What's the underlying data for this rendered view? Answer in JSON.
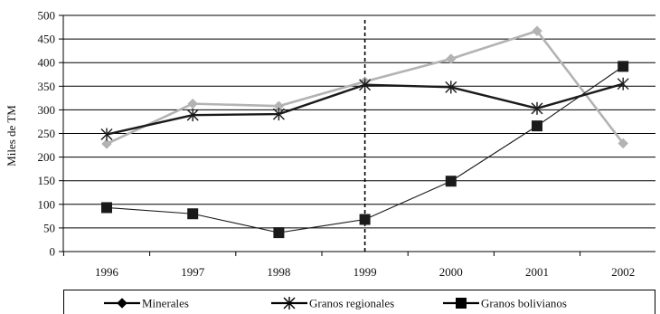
{
  "chart_data": {
    "type": "line",
    "title": "",
    "xlabel": "",
    "ylabel": "Miles de TM",
    "categories": [
      "1996",
      "1997",
      "1998",
      "1999",
      "2000",
      "2001",
      "2002"
    ],
    "ylim": [
      0,
      500
    ],
    "yticks": [
      0,
      50,
      100,
      150,
      200,
      250,
      300,
      350,
      400,
      450,
      500
    ],
    "grid": true,
    "legend_position": "bottom",
    "reference_line": {
      "x": "1999",
      "style": "dashed"
    },
    "series": [
      {
        "name": "Minerales",
        "values": [
          228,
          313,
          308,
          360,
          408,
          467,
          229
        ],
        "color": "#b3b3b3",
        "marker": "diamond"
      },
      {
        "name": "Granos regionales",
        "values": [
          248,
          289,
          291,
          353,
          348,
          303,
          355
        ],
        "color": "#1a1a1a",
        "marker": "asterisk"
      },
      {
        "name": "Granos bolivianos",
        "values": [
          93,
          80,
          40,
          68,
          149,
          266,
          392
        ],
        "color": "#1a1a1a",
        "marker": "square"
      }
    ],
    "legend_line_color": "#000000"
  }
}
